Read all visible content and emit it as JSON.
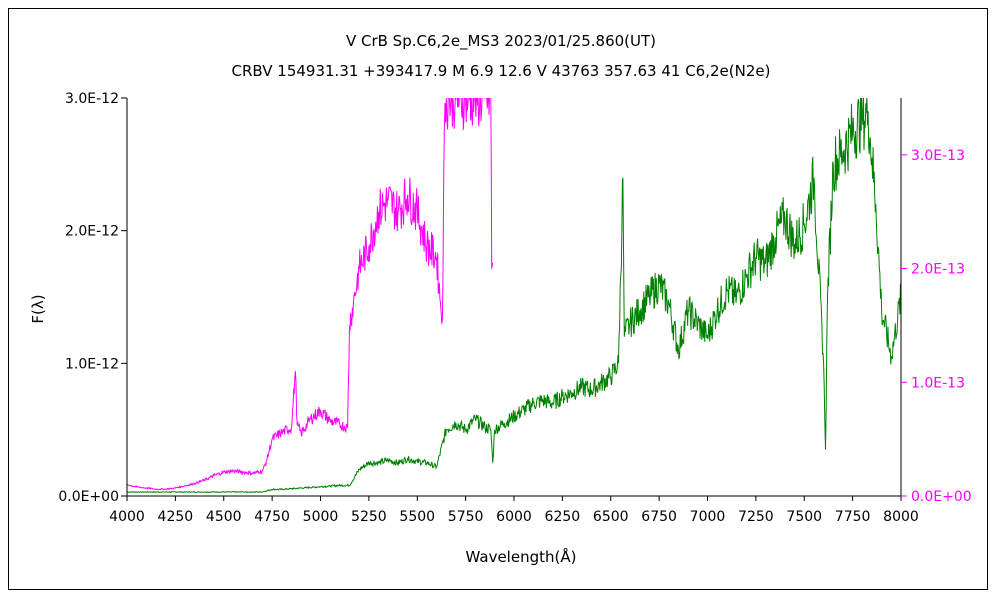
{
  "chart_data": {
    "type": "line",
    "title": "V CrB    Sp.C6,2e_MS3    2023/01/25.860(UT)",
    "subtitle": "CRBV 154931.31 +393417.9 M 6.9 12.6 V 43763 357.63 41 C6,2e(N2e)",
    "xlabel": "Wavelength(Å)",
    "ylabel": "F(λ)",
    "xlim": [
      4000,
      8000
    ],
    "ylim": [
      0,
      3e-12
    ],
    "y2lim": [
      0,
      3.5e-13
    ],
    "x_tick_labels": [
      "4000",
      "4250",
      "4500",
      "4750",
      "5000",
      "5250",
      "5500",
      "5750",
      "6000",
      "6250",
      "6500",
      "6750",
      "7000",
      "7250",
      "7500",
      "7750",
      "8000"
    ],
    "y_tick_labels": [
      "0.0E+00",
      "1.0E-12",
      "2.0E-12",
      "3.0E-12"
    ],
    "y2_tick_labels": [
      "0.0E+00",
      "1.0E-13",
      "2.0E-13",
      "3.0E-13"
    ],
    "colors": {
      "green": "#008000",
      "magenta": "#ff00ff",
      "axis": "#000000"
    },
    "series": [
      {
        "axis": "left",
        "color": "#008000",
        "x": [
          4000,
          4100,
          4200,
          4300,
          4400,
          4500,
          4600,
          4700,
          4750,
          4800,
          4900,
          5000,
          5100,
          5150,
          5200,
          5250,
          5300,
          5350,
          5400,
          5450,
          5500,
          5550,
          5600,
          5650,
          5700,
          5750,
          5800,
          5850,
          5880,
          5890,
          5900,
          5950,
          6000,
          6050,
          6100,
          6150,
          6200,
          6250,
          6300,
          6350,
          6400,
          6450,
          6500,
          6540,
          6563,
          6570,
          6600,
          6650,
          6700,
          6750,
          6800,
          6850,
          6900,
          6950,
          7000,
          7050,
          7100,
          7150,
          7200,
          7250,
          7300,
          7350,
          7400,
          7450,
          7500,
          7550,
          7600,
          7610,
          7620,
          7650,
          7700,
          7750,
          7800,
          7830,
          7850,
          7870,
          7900,
          7950,
          8000
        ],
        "y": [
          3e-14,
          3e-14,
          3e-14,
          3e-14,
          3e-14,
          3e-14,
          3e-14,
          3e-14,
          5e-14,
          5e-14,
          6e-14,
          7e-14,
          8e-14,
          8e-14,
          2e-13,
          2.5e-13,
          2.5e-13,
          2.7e-13,
          2.5e-13,
          2.8e-13,
          2.6e-13,
          2.5e-13,
          2.2e-13,
          5e-13,
          5.5e-13,
          5e-13,
          5.8e-13,
          5.2e-13,
          5e-13,
          2.5e-13,
          5e-13,
          5.5e-13,
          6e-13,
          6.5e-13,
          7e-13,
          7.2e-13,
          7e-13,
          7.5e-13,
          7.8e-13,
          8.2e-13,
          8e-13,
          8.5e-13,
          9e-13,
          1e-12,
          2.4e-12,
          1.2e-12,
          1.3e-12,
          1.4e-12,
          1.5e-12,
          1.6e-12,
          1.45e-12,
          1.1e-12,
          1.4e-12,
          1.3e-12,
          1.2e-12,
          1.4e-12,
          1.55e-12,
          1.5e-12,
          1.65e-12,
          1.8e-12,
          1.75e-12,
          1.95e-12,
          2.1e-12,
          1.9e-12,
          2.05e-12,
          2.4e-12,
          1e-12,
          3.5e-13,
          1.5e-12,
          2.5e-12,
          2.6e-12,
          2.75e-12,
          2.85e-12,
          2.9e-12,
          2.55e-12,
          2.2e-12,
          1.4e-12,
          1.05e-12,
          1.5e-12
        ]
      },
      {
        "axis": "right",
        "color": "#ff00ff",
        "x": [
          4000,
          4050,
          4100,
          4150,
          4200,
          4250,
          4300,
          4350,
          4400,
          4450,
          4500,
          4550,
          4600,
          4650,
          4700,
          4720,
          4750,
          4800,
          4850,
          4870,
          4880,
          4900,
          4950,
          5000,
          5050,
          5100,
          5140,
          5150,
          5170,
          5200,
          5250,
          5300,
          5350,
          5400,
          5450,
          5500,
          5550,
          5600,
          5620,
          5630,
          5640,
          5650,
          5660,
          5700,
          5750,
          5800,
          5850,
          5880,
          5885,
          5890
        ],
        "y": [
          1e-14,
          8e-15,
          7e-15,
          6e-15,
          6e-15,
          7e-15,
          9e-15,
          1.1e-14,
          1.4e-14,
          1.8e-14,
          2.1e-14,
          2.2e-14,
          2.1e-14,
          2e-14,
          2.2e-14,
          3e-14,
          5e-14,
          5.6e-14,
          6e-14,
          1.1e-13,
          6.2e-14,
          5.5e-14,
          6.8e-14,
          7.5e-14,
          6.6e-14,
          6.3e-14,
          6e-14,
          1.5e-13,
          1.7e-13,
          2e-13,
          2.2e-13,
          2.5e-13,
          2.6e-13,
          2.5e-13,
          2.65e-13,
          2.5e-13,
          2.2e-13,
          2.1e-13,
          1.7e-13,
          1.55e-13,
          3.2e-13,
          3.5e-13,
          3.5e-13,
          3.5e-13,
          3.5e-13,
          3.5e-13,
          3.5e-13,
          3.5e-13,
          2e-13,
          2.05e-13
        ]
      }
    ]
  }
}
